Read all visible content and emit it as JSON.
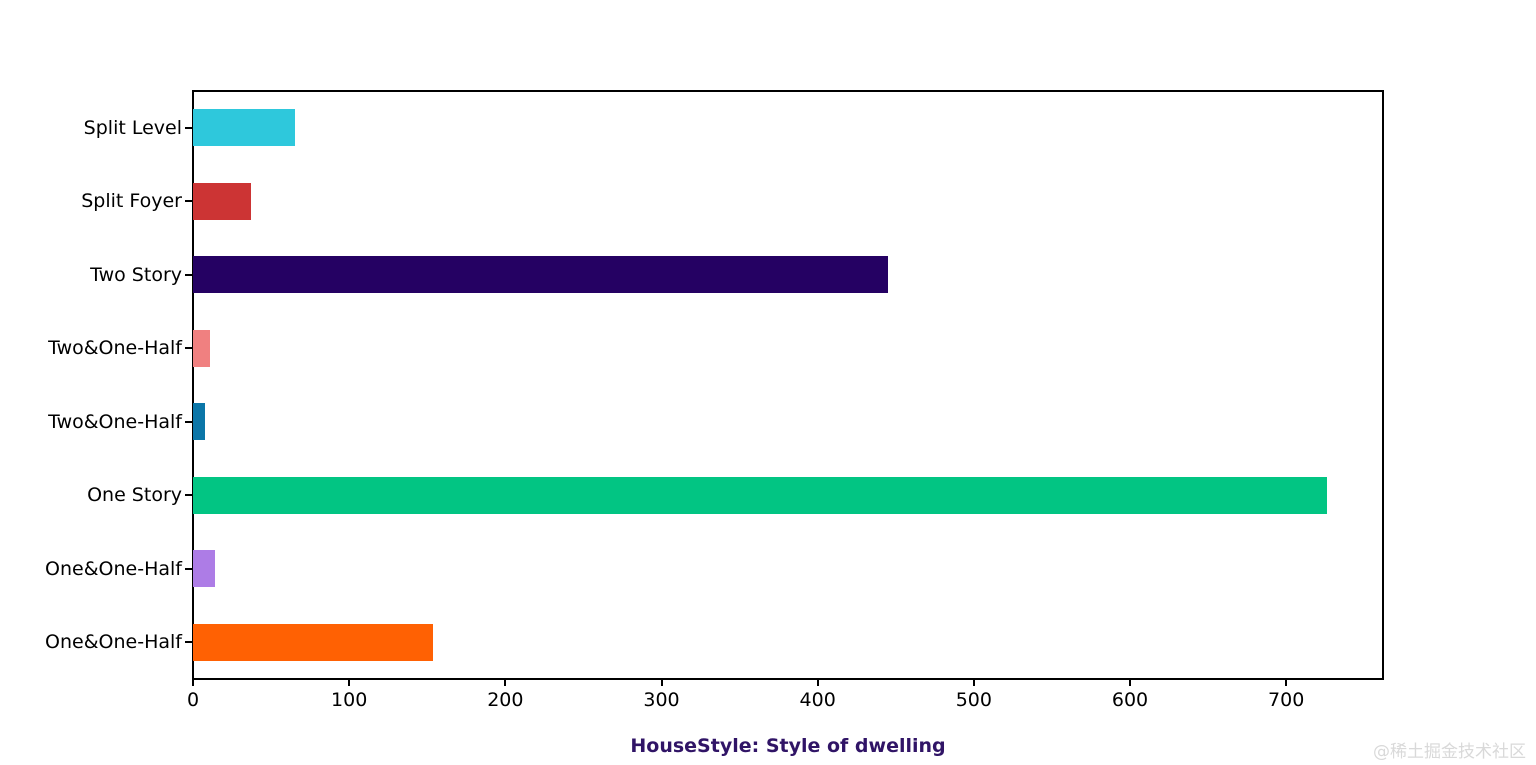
{
  "figure": {
    "watermark": "@稀土掘金技术社区"
  },
  "chart_data": {
    "type": "bar",
    "orientation": "horizontal",
    "title": "HouseStyle: Style of dwelling",
    "title_color": "#301466",
    "categories": [
      "Split Level",
      "Split Foyer",
      "Two Story",
      "Two&One-Half",
      "Two&One-Half",
      "One Story",
      "One&One-Half",
      "One&One-Half"
    ],
    "values": [
      65,
      37,
      445,
      11,
      8,
      726,
      14,
      154
    ],
    "bar_colors": [
      "#2ec8dc",
      "#cc3434",
      "#250163",
      "#f08080",
      "#0b76a8",
      "#02c583",
      "#ad7ce6",
      "#ff6103"
    ],
    "xlabel": "",
    "ylabel": "",
    "xticks": [
      0,
      100,
      200,
      300,
      400,
      500,
      600,
      700
    ],
    "xlim": [
      0,
      762
    ],
    "bar_height_fraction": 0.5,
    "grid": false,
    "legend": null,
    "background_color": "#ffffff",
    "axis_color": "#000000"
  }
}
